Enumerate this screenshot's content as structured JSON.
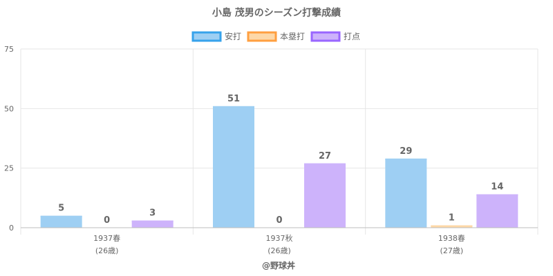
{
  "chart_data": {
    "type": "bar",
    "title": "小島 茂男のシーズン打撃成績",
    "categories": [
      {
        "label": "1937春",
        "sub": "(26歳)"
      },
      {
        "label": "1937秋",
        "sub": "(26歳)"
      },
      {
        "label": "1938春",
        "sub": "(27歳)"
      }
    ],
    "series": [
      {
        "name": "安打",
        "values": [
          5,
          51,
          29
        ],
        "fill": "#9ecff3",
        "border": "#36a2eb"
      },
      {
        "name": "本塁打",
        "values": [
          0,
          0,
          1
        ],
        "fill": "#fdd8a8",
        "border": "#ff9f40"
      },
      {
        "name": "打点",
        "values": [
          3,
          27,
          14
        ],
        "fill": "#cdb3fb",
        "border": "#9966ff"
      }
    ],
    "ylim": [
      0,
      75
    ],
    "yticks": [
      0,
      25,
      50,
      75
    ],
    "grid": true,
    "legend": "top-center",
    "credit": "@野球丼"
  }
}
